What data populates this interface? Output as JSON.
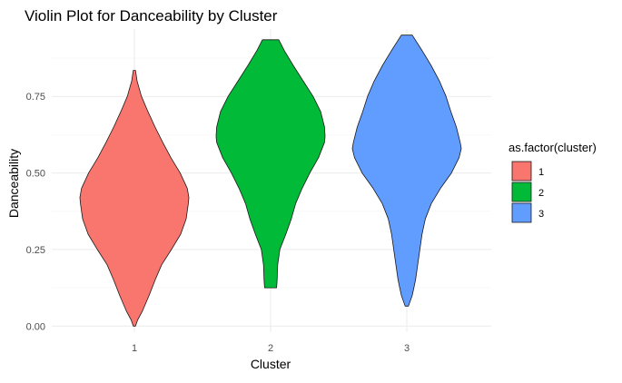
{
  "chart_data": {
    "type": "violin",
    "title": "Violin Plot for Danceability by Cluster",
    "xlabel": "Cluster",
    "ylabel": "Danceability",
    "categories": [
      "1",
      "2",
      "3"
    ],
    "ylim": [
      -0.02,
      0.97
    ],
    "yticks": [
      0.0,
      0.25,
      0.5,
      0.75
    ],
    "ytick_labels": [
      "0.00",
      "0.25",
      "0.50",
      "0.75"
    ],
    "grid": true,
    "legend": {
      "title": "as.factor(cluster)",
      "position": "right",
      "entries": [
        {
          "label": "1",
          "color": "#F8766D"
        },
        {
          "label": "2",
          "color": "#00BA38"
        },
        {
          "label": "3",
          "color": "#619CFF"
        }
      ]
    },
    "series": [
      {
        "category": "1",
        "color": "#F8766D",
        "min": 0.0,
        "max": 0.835,
        "profile": [
          [
            0.835,
            0.02
          ],
          [
            0.8,
            0.05
          ],
          [
            0.75,
            0.13
          ],
          [
            0.7,
            0.25
          ],
          [
            0.65,
            0.38
          ],
          [
            0.6,
            0.52
          ],
          [
            0.55,
            0.67
          ],
          [
            0.5,
            0.84
          ],
          [
            0.45,
            0.97
          ],
          [
            0.42,
            1.0
          ],
          [
            0.4,
            0.99
          ],
          [
            0.35,
            0.95
          ],
          [
            0.3,
            0.85
          ],
          [
            0.25,
            0.68
          ],
          [
            0.2,
            0.5
          ],
          [
            0.15,
            0.38
          ],
          [
            0.1,
            0.27
          ],
          [
            0.05,
            0.15
          ],
          [
            0.02,
            0.06
          ],
          [
            0.0,
            0.02
          ]
        ]
      },
      {
        "category": "2",
        "color": "#00BA38",
        "min": 0.125,
        "max": 0.935,
        "profile": [
          [
            0.935,
            0.15
          ],
          [
            0.9,
            0.25
          ],
          [
            0.85,
            0.42
          ],
          [
            0.8,
            0.6
          ],
          [
            0.75,
            0.78
          ],
          [
            0.7,
            0.92
          ],
          [
            0.65,
            0.99
          ],
          [
            0.62,
            1.0
          ],
          [
            0.6,
            0.99
          ],
          [
            0.55,
            0.88
          ],
          [
            0.5,
            0.72
          ],
          [
            0.45,
            0.58
          ],
          [
            0.4,
            0.46
          ],
          [
            0.35,
            0.38
          ],
          [
            0.3,
            0.28
          ],
          [
            0.25,
            0.17
          ],
          [
            0.2,
            0.13
          ],
          [
            0.15,
            0.12
          ],
          [
            0.125,
            0.11
          ]
        ]
      },
      {
        "category": "3",
        "color": "#619CFF",
        "min": 0.065,
        "max": 0.95,
        "profile": [
          [
            0.95,
            0.1
          ],
          [
            0.9,
            0.28
          ],
          [
            0.85,
            0.45
          ],
          [
            0.8,
            0.6
          ],
          [
            0.75,
            0.72
          ],
          [
            0.7,
            0.81
          ],
          [
            0.65,
            0.91
          ],
          [
            0.6,
            0.98
          ],
          [
            0.58,
            1.0
          ],
          [
            0.55,
            0.96
          ],
          [
            0.5,
            0.82
          ],
          [
            0.45,
            0.62
          ],
          [
            0.4,
            0.45
          ],
          [
            0.35,
            0.34
          ],
          [
            0.3,
            0.28
          ],
          [
            0.25,
            0.24
          ],
          [
            0.2,
            0.2
          ],
          [
            0.15,
            0.16
          ],
          [
            0.1,
            0.1
          ],
          [
            0.065,
            0.03
          ]
        ]
      }
    ]
  }
}
